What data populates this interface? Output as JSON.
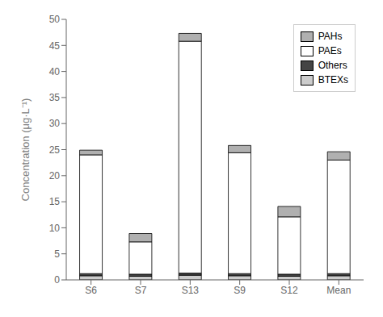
{
  "chart_data": {
    "type": "bar",
    "stacked": true,
    "categories": [
      "S6",
      "S7",
      "S13",
      "S9",
      "S12",
      "Mean"
    ],
    "series": [
      {
        "name": "BTEXs",
        "color": "#cccccc",
        "values": [
          0.8,
          0.7,
          0.9,
          0.8,
          0.7,
          0.8
        ]
      },
      {
        "name": "Others",
        "color": "#444444",
        "values": [
          0.4,
          0.4,
          0.4,
          0.4,
          0.4,
          0.4
        ]
      },
      {
        "name": "PAEs",
        "color": "#ffffff",
        "values": [
          22.8,
          6.2,
          44.5,
          23.2,
          11.0,
          21.8
        ]
      },
      {
        "name": "PAHs",
        "color": "#b0b0b0",
        "values": [
          0.9,
          1.6,
          1.5,
          1.4,
          2.0,
          1.6
        ]
      }
    ],
    "ylabel": "Concentration (μg·L⁻¹)",
    "ylim": [
      0,
      50
    ],
    "yticks": [
      0,
      5,
      10,
      15,
      20,
      25,
      30,
      35,
      40,
      45,
      50
    ],
    "legend": "upper right"
  }
}
